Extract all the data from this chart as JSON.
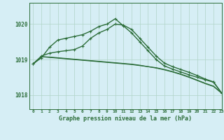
{
  "title": "Graphe pression niveau de la mer (hPa)",
  "background_color": "#d6eef5",
  "plot_background": "#d6eef5",
  "grid_color": "#b0d4c8",
  "line_color": "#2d6e3a",
  "xlim": [
    -0.5,
    23
  ],
  "ylim": [
    1017.6,
    1020.6
  ],
  "yticks": [
    1018,
    1019,
    1020
  ],
  "xticks": [
    0,
    1,
    2,
    3,
    4,
    5,
    6,
    7,
    8,
    9,
    10,
    11,
    12,
    13,
    14,
    15,
    16,
    17,
    18,
    19,
    20,
    21,
    22,
    23
  ],
  "series": [
    {
      "x": [
        0,
        1,
        2,
        3,
        4,
        5,
        6,
        7,
        8,
        9,
        10,
        11,
        12,
        13,
        14,
        15,
        16,
        17,
        18,
        19,
        20,
        21,
        22,
        23
      ],
      "y": [
        1018.88,
        1019.05,
        1019.35,
        1019.55,
        1019.6,
        1019.65,
        1019.7,
        1019.8,
        1019.93,
        1020.0,
        1020.15,
        1019.95,
        1019.75,
        1019.5,
        1019.25,
        1019.0,
        1018.82,
        1018.73,
        1018.65,
        1018.57,
        1018.5,
        1018.43,
        1018.36,
        1018.05
      ],
      "marker": true,
      "linewidth": 1.0
    },
    {
      "x": [
        0,
        1,
        2,
        3,
        4,
        5,
        6,
        7,
        8,
        9,
        10,
        11,
        12,
        13,
        14,
        15,
        16,
        17,
        18,
        19,
        20,
        21,
        22,
        23
      ],
      "y": [
        1018.88,
        1019.1,
        1019.18,
        1019.22,
        1019.25,
        1019.28,
        1019.38,
        1019.6,
        1019.75,
        1019.85,
        1020.0,
        1019.97,
        1019.85,
        1019.6,
        1019.35,
        1019.1,
        1018.9,
        1018.8,
        1018.72,
        1018.64,
        1018.55,
        1018.45,
        1018.37,
        1018.05
      ],
      "marker": true,
      "linewidth": 1.0
    },
    {
      "x": [
        0,
        1,
        2,
        3,
        4,
        5,
        6,
        7,
        8,
        9,
        10,
        11,
        12,
        13,
        14,
        15,
        16,
        17,
        18,
        19,
        20,
        21,
        22,
        23
      ],
      "y": [
        1018.88,
        1019.08,
        1019.06,
        1019.04,
        1019.02,
        1019.0,
        1018.98,
        1018.96,
        1018.94,
        1018.92,
        1018.9,
        1018.88,
        1018.86,
        1018.83,
        1018.8,
        1018.76,
        1018.71,
        1018.65,
        1018.58,
        1018.5,
        1018.41,
        1018.32,
        1018.24,
        1018.05
      ],
      "marker": false,
      "linewidth": 0.9
    },
    {
      "x": [
        0,
        1,
        2,
        3,
        4,
        5,
        6,
        7,
        8,
        9,
        10,
        11,
        12,
        13,
        14,
        15,
        16,
        17,
        18,
        19,
        20,
        21,
        22,
        23
      ],
      "y": [
        1018.88,
        1019.08,
        1019.07,
        1019.05,
        1019.03,
        1019.01,
        1018.99,
        1018.97,
        1018.95,
        1018.93,
        1018.91,
        1018.89,
        1018.87,
        1018.84,
        1018.8,
        1018.77,
        1018.72,
        1018.66,
        1018.59,
        1018.51,
        1018.42,
        1018.33,
        1018.25,
        1018.05
      ],
      "marker": false,
      "linewidth": 0.9
    }
  ]
}
